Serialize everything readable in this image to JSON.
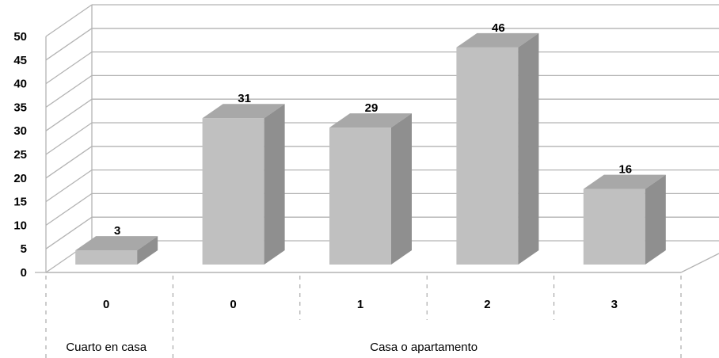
{
  "chart_data": {
    "type": "bar",
    "style": "3d-column",
    "categories": [
      "0",
      "0",
      "1",
      "2",
      "3"
    ],
    "groups": [
      {
        "label": "Cuarto en casa",
        "categories": [
          "0"
        ]
      },
      {
        "label": "Casa o apartamento",
        "categories": [
          "0",
          "1",
          "2",
          "3"
        ]
      }
    ],
    "values": [
      3,
      31,
      29,
      46,
      16
    ],
    "data_labels": [
      "3",
      "31",
      "29",
      "46",
      "16"
    ],
    "title": "",
    "xlabel": "",
    "ylabel": "",
    "ylim": [
      0,
      50
    ],
    "yticks": [
      "0",
      "5",
      "10",
      "15",
      "20",
      "25",
      "30",
      "35",
      "40",
      "45",
      "50"
    ],
    "grid": true,
    "legend": "none",
    "colors": {
      "bar_front": "#c0c0c0",
      "bar_top": "#a8a8a8",
      "bar_side": "#8f8f8f",
      "grid": "#b3b3b3"
    }
  }
}
